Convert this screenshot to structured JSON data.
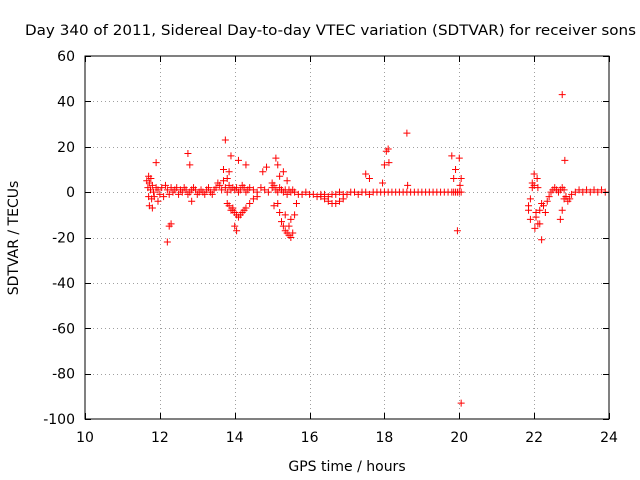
{
  "chart_data": {
    "type": "scatter",
    "title": "Day 340 of 2011, Sidereal Day-to-day VTEC variation (SDTVAR) for receiver sons",
    "xlabel": "GPS time / hours",
    "ylabel": "SDTVAR / TECUs",
    "xlim": [
      10,
      24
    ],
    "ylim": [
      -100,
      60
    ],
    "xticks": [
      "10",
      "12",
      "14",
      "16",
      "18",
      "20",
      "22",
      "24"
    ],
    "yticks": [
      "-100",
      "-80",
      "-60",
      "-40",
      "-20",
      "0",
      "20",
      "40",
      "60"
    ],
    "grid": true,
    "marker": "plus",
    "marker_color": "#ff0000",
    "series": [
      {
        "name": "SDTVAR",
        "x": [
          11.65,
          11.68,
          11.7,
          11.72,
          11.75,
          11.78,
          11.8,
          11.83,
          11.85,
          11.9,
          11.95,
          12.0,
          12.05,
          12.1,
          12.15,
          12.2,
          12.25,
          12.3,
          12.35,
          12.4,
          12.45,
          12.5,
          12.55,
          12.6,
          12.65,
          12.7,
          12.75,
          12.8,
          12.85,
          12.9,
          12.95,
          13.0,
          13.05,
          13.1,
          13.15,
          13.2,
          13.25,
          13.3,
          13.35,
          13.4,
          13.45,
          13.5,
          13.55,
          13.6,
          13.65,
          13.7,
          13.75,
          13.8,
          13.85,
          13.9,
          13.95,
          14.0,
          14.05,
          14.1,
          14.15,
          14.2,
          14.25,
          14.3,
          14.35,
          14.4,
          14.5,
          14.6,
          14.7,
          14.8,
          14.9,
          15.0,
          15.05,
          15.1,
          15.15,
          15.2,
          15.25,
          15.3,
          15.35,
          15.4,
          15.45,
          15.5,
          15.55,
          15.6,
          15.7,
          15.8,
          15.9,
          16.0,
          16.1,
          16.2,
          16.3,
          16.4,
          16.5,
          16.6,
          16.7,
          16.8,
          16.9,
          17.0,
          17.1,
          17.2,
          17.3,
          17.4,
          17.5,
          17.6,
          17.7,
          17.8,
          17.9,
          18.0,
          18.1,
          18.2,
          18.3,
          18.4,
          18.5,
          18.6,
          18.7,
          18.8,
          18.9,
          19.0,
          19.1,
          19.2,
          19.3,
          19.4,
          19.5,
          19.6,
          19.7,
          19.8,
          19.85,
          19.9,
          19.95,
          20.0,
          20.05,
          11.7,
          11.72,
          11.76,
          11.8,
          11.9,
          11.95,
          12.2,
          12.25,
          12.3,
          12.75,
          12.8,
          12.85,
          13.7,
          13.75,
          13.8,
          13.85,
          13.9,
          13.95,
          14.0,
          14.05,
          14.1,
          14.3,
          14.75,
          14.85,
          15.0,
          15.05,
          15.1,
          15.15,
          15.2,
          15.3,
          15.35,
          15.4,
          15.45,
          15.5,
          17.5,
          17.6,
          17.95,
          18.0,
          18.05,
          18.1,
          18.12,
          18.6,
          18.62,
          19.8,
          19.85,
          19.9,
          19.95,
          20.0,
          20.02,
          20.05,
          13.8,
          13.85,
          13.9,
          13.95,
          14.0,
          14.05,
          14.1,
          14.15,
          14.2,
          14.25,
          14.3,
          14.4,
          14.5,
          14.6,
          15.15,
          15.2,
          15.25,
          15.3,
          15.35,
          15.4,
          15.45,
          15.5,
          15.55,
          15.6,
          15.65,
          16.3,
          16.4,
          16.5,
          16.6,
          16.7,
          16.8,
          16.9,
          21.85,
          21.9,
          21.95,
          22.0,
          22.02,
          22.05,
          22.08,
          22.1,
          22.15,
          22.2,
          22.25,
          22.3,
          22.35,
          22.4,
          22.45,
          22.5,
          22.55,
          22.6,
          22.65,
          22.7,
          22.75,
          22.8,
          22.85,
          22.9,
          22.95,
          23.0,
          23.1,
          23.2,
          23.3,
          23.4,
          23.5,
          23.6,
          23.7,
          23.8,
          23.9,
          21.85,
          21.9,
          21.95,
          22.0,
          22.05,
          22.1,
          22.15,
          22.2,
          22.7,
          22.75,
          22.8,
          22.85,
          22.75,
          22.82,
          20.05
        ],
        "y": [
          5,
          2,
          -2,
          4,
          1,
          -3,
          3,
          0,
          -2,
          2,
          1,
          -1,
          2,
          -2,
          3,
          1,
          -1,
          2,
          0,
          1,
          2,
          -1,
          1,
          0,
          2,
          1,
          -1,
          0,
          1,
          2,
          1,
          -1,
          0,
          1,
          0,
          -1,
          1,
          2,
          0,
          -1,
          1,
          2,
          4,
          3,
          1,
          5,
          2,
          0,
          3,
          1,
          2,
          1,
          2,
          0,
          1,
          3,
          2,
          0,
          1,
          2,
          1,
          0,
          2,
          1,
          0,
          2,
          3,
          1,
          0,
          2,
          1,
          0,
          1,
          -1,
          1,
          0,
          1,
          0,
          -1,
          -1,
          0,
          -1,
          -1,
          -2,
          -1,
          -1,
          -2,
          -1,
          -1,
          0,
          -1,
          -1,
          0,
          0,
          -1,
          0,
          0,
          -1,
          0,
          0,
          0,
          0,
          0,
          0,
          0,
          0,
          0,
          0,
          0,
          0,
          0,
          0,
          0,
          0,
          0,
          0,
          0,
          0,
          0,
          0,
          0,
          0,
          0,
          0,
          0,
          7,
          -6,
          6,
          -7,
          13,
          -4,
          -22,
          -15,
          -14,
          17,
          12,
          -4,
          10,
          23,
          6,
          9,
          16,
          -8,
          -15,
          -17,
          14,
          12,
          9,
          11,
          4,
          -6,
          15,
          12,
          7,
          9,
          -10,
          5,
          -15,
          -12,
          8,
          6,
          4,
          12,
          18,
          19,
          13,
          26,
          3,
          16,
          6,
          10,
          -17,
          15,
          3,
          6,
          -5,
          -6,
          -8,
          -7,
          -9,
          -10,
          -11,
          -10,
          -9,
          -8,
          -7,
          -5,
          -3,
          -2,
          -5,
          -9,
          -13,
          -15,
          -17,
          -18,
          -19,
          -20,
          -18,
          -10,
          -5,
          -2,
          -3,
          -4,
          -5,
          -5,
          -4,
          -3,
          -8,
          -12,
          4,
          8,
          -16,
          -9,
          6,
          2,
          -14,
          -21,
          -6,
          -9,
          -4,
          -2,
          0,
          1,
          2,
          1,
          0,
          1,
          2,
          1,
          -2,
          -4,
          -3,
          -1,
          0,
          1,
          0,
          1,
          0,
          1,
          0,
          1,
          0,
          -6,
          -3,
          2,
          3,
          -11,
          -14,
          -8,
          -5,
          -12,
          -8,
          -3,
          -2,
          43,
          14,
          -93
        ]
      }
    ]
  }
}
